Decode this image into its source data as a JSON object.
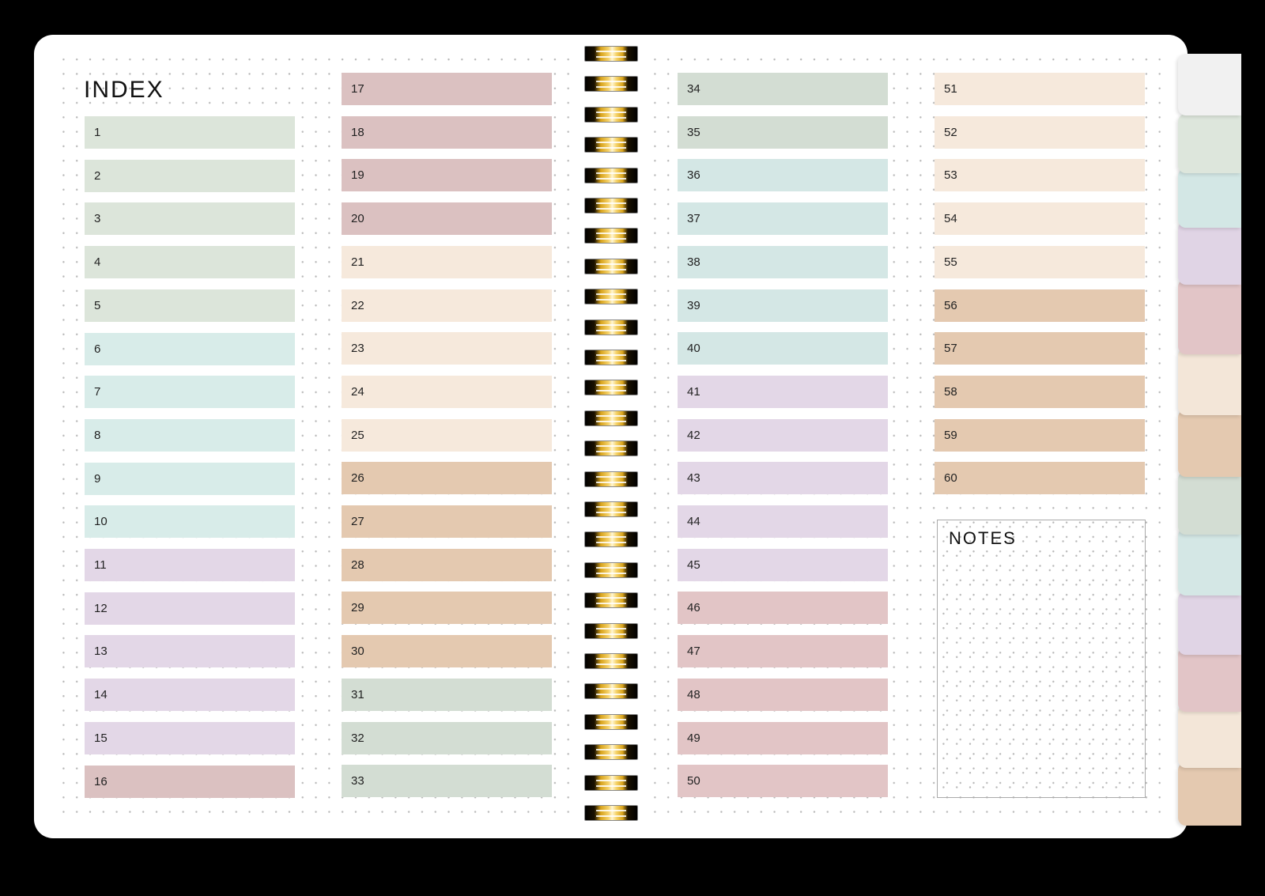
{
  "index_title": "INDEX",
  "notes_title": "NOTES",
  "colors": {
    "green": "#dce5da",
    "sage": "#d3ddd3",
    "teal": "#d8ece9",
    "aqua": "#d4e7e5",
    "lavender": "#e3d7e7",
    "rose": "#dbc1c1",
    "blush": "#e2c5c6",
    "cream": "#f6e9dc",
    "tan": "#e4c9b0",
    "page": "#ffffff",
    "background": "#000000"
  },
  "columns": [
    {
      "entries": [
        {
          "n": "1",
          "color": "#dce5da"
        },
        {
          "n": "2",
          "color": "#dce5da"
        },
        {
          "n": "3",
          "color": "#dce5da"
        },
        {
          "n": "4",
          "color": "#dce5da"
        },
        {
          "n": "5",
          "color": "#dce5da"
        },
        {
          "n": "6",
          "color": "#d8ece9"
        },
        {
          "n": "7",
          "color": "#d8ece9"
        },
        {
          "n": "8",
          "color": "#d8ece9"
        },
        {
          "n": "9",
          "color": "#d8ece9"
        },
        {
          "n": "10",
          "color": "#d8ece9"
        },
        {
          "n": "11",
          "color": "#e3d7e7"
        },
        {
          "n": "12",
          "color": "#e3d7e7"
        },
        {
          "n": "13",
          "color": "#e3d7e7"
        },
        {
          "n": "14",
          "color": "#e3d7e7"
        },
        {
          "n": "15",
          "color": "#e3d7e7"
        },
        {
          "n": "16",
          "color": "#dbc1c1"
        }
      ]
    },
    {
      "entries": [
        {
          "n": "17",
          "color": "#dbc1c1"
        },
        {
          "n": "18",
          "color": "#dbc1c1"
        },
        {
          "n": "19",
          "color": "#dbc1c1"
        },
        {
          "n": "20",
          "color": "#dbc1c1"
        },
        {
          "n": "21",
          "color": "#f6e9dc"
        },
        {
          "n": "22",
          "color": "#f6e9dc"
        },
        {
          "n": "23",
          "color": "#f6e9dc"
        },
        {
          "n": "24",
          "color": "#f6e9dc"
        },
        {
          "n": "25",
          "color": "#f6e9dc"
        },
        {
          "n": "26",
          "color": "#e4c9b0"
        },
        {
          "n": "27",
          "color": "#e4c9b0"
        },
        {
          "n": "28",
          "color": "#e4c9b0"
        },
        {
          "n": "29",
          "color": "#e4c9b0"
        },
        {
          "n": "30",
          "color": "#e4c9b0"
        },
        {
          "n": "31",
          "color": "#d3ddd3"
        },
        {
          "n": "32",
          "color": "#d3ddd3"
        },
        {
          "n": "33",
          "color": "#d3ddd3"
        }
      ]
    },
    {
      "entries": [
        {
          "n": "34",
          "color": "#d3ddd3"
        },
        {
          "n": "35",
          "color": "#d3ddd3"
        },
        {
          "n": "36",
          "color": "#d4e7e5"
        },
        {
          "n": "37",
          "color": "#d4e7e5"
        },
        {
          "n": "38",
          "color": "#d4e7e5"
        },
        {
          "n": "39",
          "color": "#d4e7e5"
        },
        {
          "n": "40",
          "color": "#d4e7e5"
        },
        {
          "n": "41",
          "color": "#e3d7e7"
        },
        {
          "n": "42",
          "color": "#e3d7e7"
        },
        {
          "n": "43",
          "color": "#e3d7e7"
        },
        {
          "n": "44",
          "color": "#e3d7e7"
        },
        {
          "n": "45",
          "color": "#e3d7e7"
        },
        {
          "n": "46",
          "color": "#e2c5c6"
        },
        {
          "n": "47",
          "color": "#e2c5c6"
        },
        {
          "n": "48",
          "color": "#e2c5c6"
        },
        {
          "n": "49",
          "color": "#e2c5c6"
        },
        {
          "n": "50",
          "color": "#e2c5c6"
        }
      ]
    },
    {
      "entries": [
        {
          "n": "51",
          "color": "#f6e9dc"
        },
        {
          "n": "52",
          "color": "#f6e9dc"
        },
        {
          "n": "53",
          "color": "#f6e9dc"
        },
        {
          "n": "54",
          "color": "#f6e9dc"
        },
        {
          "n": "55",
          "color": "#f6e9dc"
        },
        {
          "n": "56",
          "color": "#e4c9b0"
        },
        {
          "n": "57",
          "color": "#e4c9b0"
        },
        {
          "n": "58",
          "color": "#e4c9b0"
        },
        {
          "n": "59",
          "color": "#e4c9b0"
        },
        {
          "n": "60",
          "color": "#e4c9b0"
        }
      ]
    }
  ],
  "tabs": [
    {
      "name": "tab-home",
      "color": "#f1f1f1"
    },
    {
      "name": "tab-green",
      "color": "#dde6dc"
    },
    {
      "name": "tab-teal",
      "color": "#d3e7e5"
    },
    {
      "name": "tab-lavender",
      "color": "#e0d4e5"
    },
    {
      "name": "tab-rose",
      "color": "#e2c5c7"
    },
    {
      "name": "tab-cream",
      "color": "#f3e6d8"
    },
    {
      "name": "tab-tan",
      "color": "#e4c9b0"
    },
    {
      "name": "tab-sage",
      "color": "#d3ddd3"
    },
    {
      "name": "tab-aqua",
      "color": "#d4e7e5"
    },
    {
      "name": "tab-lavender-2",
      "color": "#e0d4e5"
    },
    {
      "name": "tab-rose-2",
      "color": "#e2c5c7"
    },
    {
      "name": "tab-cream-2",
      "color": "#f3e6d8"
    },
    {
      "name": "tab-tan-2",
      "color": "#e4c9b0"
    }
  ],
  "spiral_ring_count": 26
}
